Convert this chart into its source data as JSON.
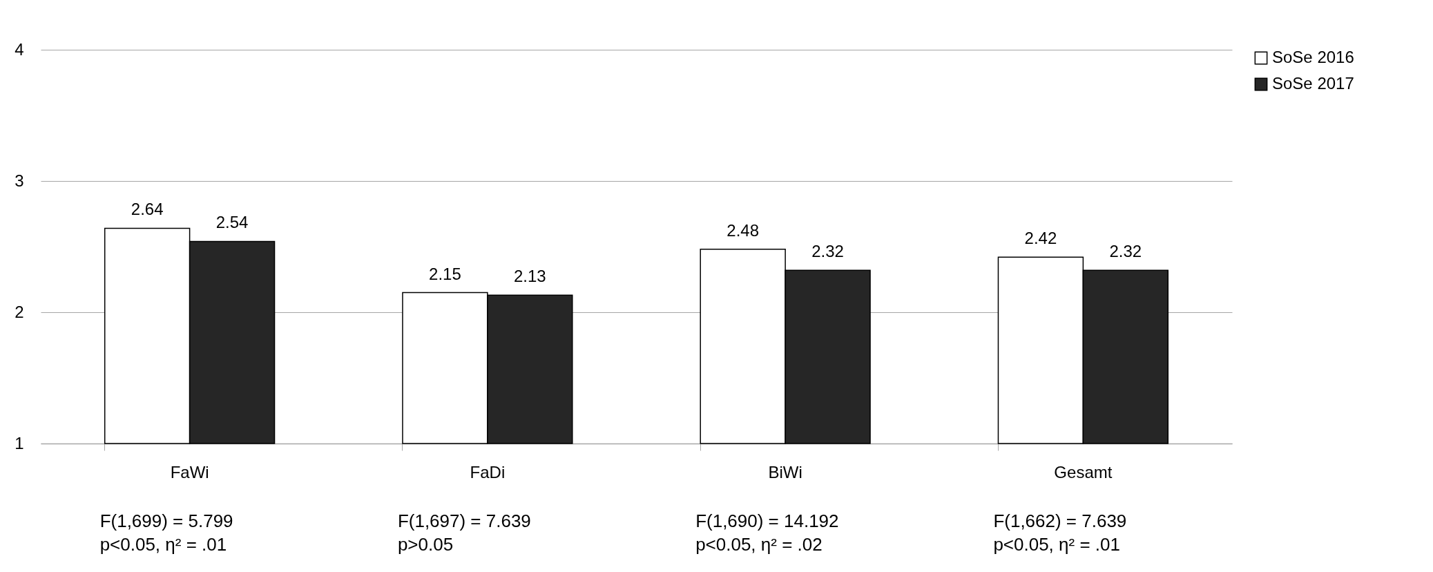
{
  "chart_data": {
    "type": "bar",
    "categories": [
      "FaWi",
      "FaDi",
      "BiWi",
      "Gesamt"
    ],
    "series": [
      {
        "name": "SoSe 2016",
        "color": "#ffffff",
        "values": [
          2.64,
          2.15,
          2.48,
          2.42
        ]
      },
      {
        "name": "SoSe 2017",
        "color": "#262626",
        "values": [
          2.54,
          2.13,
          2.32,
          2.32
        ]
      }
    ],
    "ylim": [
      1,
      4
    ],
    "yticks": [
      1,
      2,
      3,
      4
    ],
    "grid": "y",
    "legend": "right",
    "data_labels": true,
    "annotations": [
      "F(1,699) = 5.799\np<0.05, η² = .01",
      "F(1,697) = 7.639\np>0.05",
      "F(1,690) = 14.192\np<0.05, η² = .02",
      "F(1,662) = 7.639\np<0.05, η² = .01"
    ]
  }
}
